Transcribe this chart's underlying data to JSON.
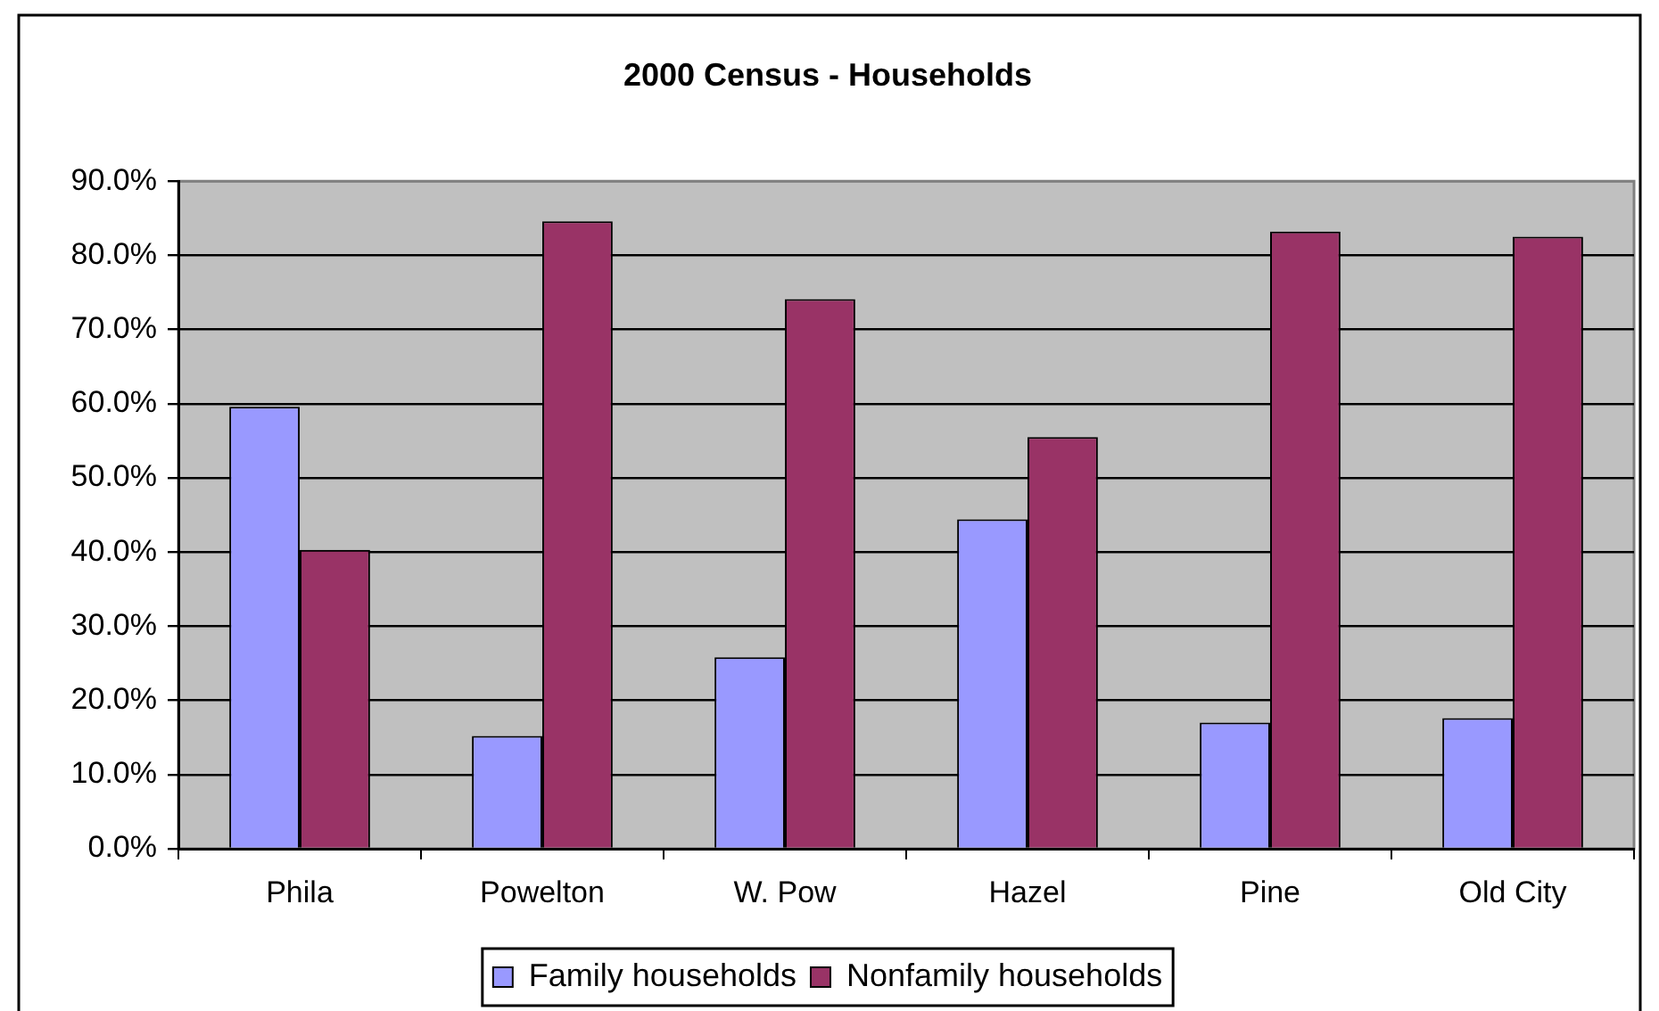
{
  "chart_data": {
    "type": "bar",
    "title": "2000 Census - Households",
    "categories": [
      "Phila",
      "Powelton",
      "W. Pow",
      "Hazel",
      "Pine",
      "Old City"
    ],
    "series": [
      {
        "name": "Family households",
        "color": "#9999ff",
        "values": [
          59.6,
          15.2,
          25.8,
          44.4,
          17.0,
          17.6
        ]
      },
      {
        "name": "Nonfamily households",
        "color": "#993366",
        "values": [
          40.3,
          84.6,
          74.1,
          55.5,
          83.2,
          82.5
        ]
      }
    ],
    "ylim": [
      0,
      90
    ],
    "yticks": [
      {
        "value": 0,
        "label": "0.0%"
      },
      {
        "value": 10,
        "label": "10.0%"
      },
      {
        "value": 20,
        "label": "20.0%"
      },
      {
        "value": 30,
        "label": "30.0%"
      },
      {
        "value": 40,
        "label": "40.0%"
      },
      {
        "value": 50,
        "label": "50.0%"
      },
      {
        "value": 60,
        "label": "60.0%"
      },
      {
        "value": 70,
        "label": "70.0%"
      },
      {
        "value": 80,
        "label": "80.0%"
      },
      {
        "value": 90,
        "label": "90.0%"
      }
    ],
    "grid": "y",
    "legend": "bottom"
  }
}
